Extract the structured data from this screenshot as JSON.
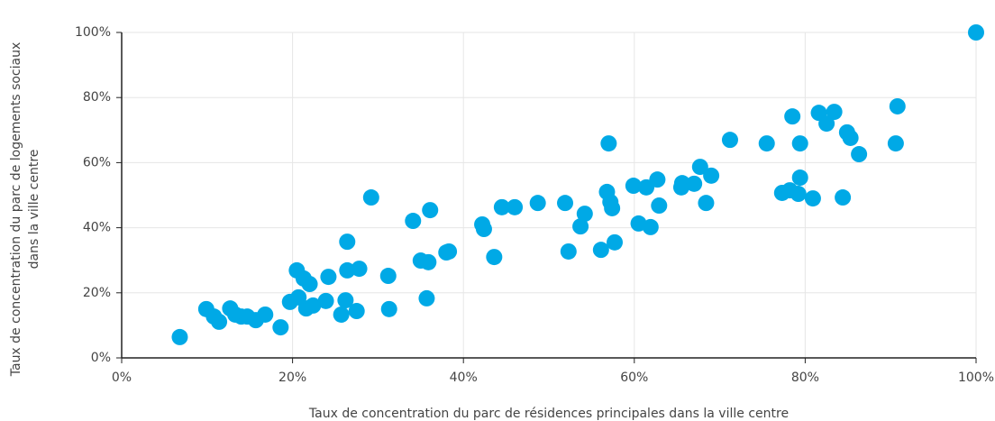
{
  "chart_data": {
    "type": "scatter",
    "xlabel": "Taux de concentration du parc de résidences principales dans la ville centre",
    "ylabel": [
      "Taux de concentration du parc de logements sociaux",
      "dans la ville centre"
    ],
    "color": "#00a9e6",
    "grid": true,
    "xlim": [
      0,
      100
    ],
    "ylim": [
      0,
      100
    ],
    "xticks": [
      {
        "value": 0,
        "label": "0%"
      },
      {
        "value": 20,
        "label": "20%"
      },
      {
        "value": 40,
        "label": "40%"
      },
      {
        "value": 60,
        "label": "60%"
      },
      {
        "value": 80,
        "label": "80%"
      },
      {
        "value": 100,
        "label": "100%"
      }
    ],
    "yticks": [
      {
        "value": 0,
        "label": "0%"
      },
      {
        "value": 20,
        "label": "20%"
      },
      {
        "value": 40,
        "label": "40%"
      },
      {
        "value": 60,
        "label": "60%"
      },
      {
        "value": 80,
        "label": "80%"
      },
      {
        "value": 100,
        "label": "100%"
      }
    ],
    "x": [
      6.8,
      9.9,
      10.8,
      11.4,
      12.7,
      13.3,
      14.0,
      14.7,
      15.7,
      16.8,
      18.6,
      19.7,
      20.5,
      20.7,
      21.3,
      21.6,
      22.0,
      22.4,
      23.9,
      24.2,
      25.7,
      26.2,
      26.4,
      26.4,
      27.5,
      27.8,
      29.2,
      31.2,
      31.3,
      34.1,
      35.0,
      35.7,
      35.9,
      36.1,
      38.0,
      38.3,
      42.2,
      42.4,
      43.6,
      44.5,
      46.0,
      48.7,
      51.9,
      52.3,
      53.7,
      54.2,
      56.1,
      56.8,
      57.0,
      57.2,
      57.4,
      57.7,
      59.9,
      60.5,
      61.4,
      61.9,
      62.7,
      62.9,
      65.5,
      65.6,
      67.0,
      67.7,
      68.4,
      69.0,
      71.2,
      75.5,
      77.3,
      78.2,
      78.5,
      79.2,
      79.4,
      79.4,
      80.9,
      81.6,
      82.5,
      83.4,
      84.4,
      84.9,
      85.3,
      86.3,
      90.6,
      90.8,
      100
    ],
    "values": [
      6.4,
      15.0,
      12.7,
      11.1,
      15.2,
      13.3,
      12.7,
      12.7,
      11.6,
      13.3,
      9.4,
      17.2,
      26.9,
      18.6,
      24.4,
      15.2,
      22.7,
      16.1,
      17.5,
      24.9,
      13.3,
      17.7,
      35.7,
      26.9,
      14.4,
      27.4,
      49.3,
      25.2,
      15.0,
      42.1,
      29.9,
      18.3,
      29.4,
      45.4,
      32.4,
      32.7,
      41.0,
      39.6,
      31.0,
      46.3,
      46.3,
      47.6,
      47.6,
      32.7,
      40.4,
      44.3,
      33.2,
      51.0,
      65.9,
      47.9,
      46.0,
      35.5,
      52.9,
      41.3,
      52.4,
      40.2,
      54.8,
      46.8,
      52.4,
      53.7,
      53.5,
      58.7,
      47.6,
      56.0,
      67.0,
      65.9,
      50.7,
      51.5,
      74.2,
      50.4,
      55.4,
      65.9,
      49.0,
      75.3,
      72.0,
      75.6,
      49.3,
      69.3,
      67.6,
      62.6,
      65.9,
      77.3,
      100
    ]
  }
}
